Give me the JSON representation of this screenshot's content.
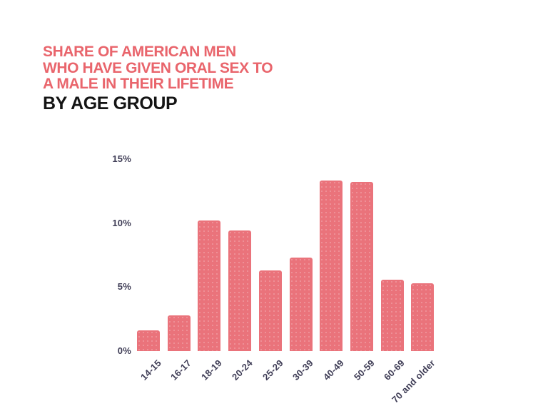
{
  "title": {
    "lines_accent": [
      "SHARE OF AMERICAN MEN",
      "WHO HAVE GIVEN ORAL SEX TO",
      "A MALE IN THEIR LIFETIME"
    ],
    "line_black": "BY AGE GROUP"
  },
  "colors": {
    "background": "#FFFFFF",
    "accent": "#E9656C",
    "title_black": "#141414",
    "bar": "#EA737B",
    "axis_label": "#3F3D56"
  },
  "chart_data": {
    "type": "bar",
    "title": "Share of American men who have given oral sex to a male in their lifetime, by age group",
    "categories": [
      "14-15",
      "16-17",
      "18-19",
      "20-24",
      "25-29",
      "30-39",
      "40-49",
      "50-59",
      "60-69",
      "70 and older"
    ],
    "values": [
      1.6,
      2.8,
      10.2,
      9.4,
      6.3,
      7.3,
      13.3,
      13.2,
      5.6,
      5.3
    ],
    "unit": "%",
    "xlabel": "",
    "ylabel": "",
    "ylim": [
      0,
      15
    ],
    "yticks": [
      0,
      5,
      10,
      15
    ],
    "ytick_labels": [
      "0%",
      "5%",
      "10%",
      "15%"
    ],
    "grid": false,
    "legend": false,
    "bar_color": "#EA737B",
    "bar_texture": "dotted",
    "x_label_rotation": -45
  }
}
